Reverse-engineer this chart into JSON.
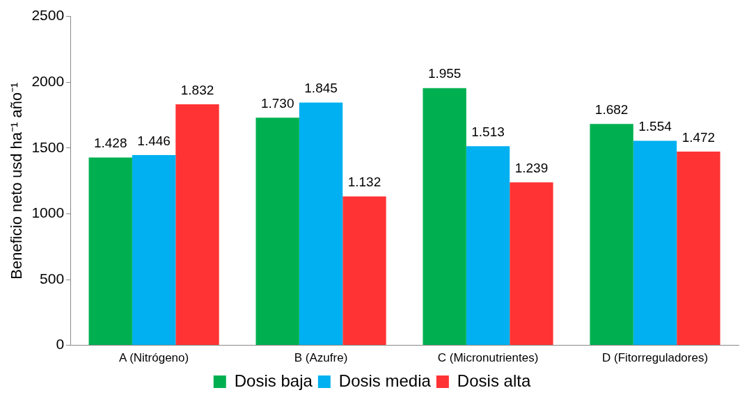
{
  "chart_data": {
    "type": "bar",
    "ylabel": "Beneficio neto usd ha⁻¹ año⁻¹",
    "categories": [
      "A (Nitrógeno)",
      "B (Azufre)",
      "C (Micronutrientes)",
      "D (Fitorreguladores)"
    ],
    "series": [
      {
        "name": "Dosis baja",
        "color": "#00b050",
        "values": [
          1428,
          1730,
          1955,
          1682
        ],
        "value_labels": [
          "1.428",
          "1.730",
          "1.955",
          "1.682"
        ]
      },
      {
        "name": "Dosis media",
        "color": "#00b0f0",
        "values": [
          1446,
          1845,
          1513,
          1554
        ],
        "value_labels": [
          "1.446",
          "1.845",
          "1.513",
          "1.554"
        ]
      },
      {
        "name": "Dosis alta",
        "color": "#ff3333",
        "values": [
          1832,
          1132,
          1239,
          1472
        ],
        "value_labels": [
          "1.832",
          "1.132",
          "1.239",
          "1.472"
        ]
      }
    ],
    "ylim": [
      0,
      2500
    ],
    "yticks": [
      0,
      500,
      1000,
      1500,
      2000,
      2500
    ],
    "grid": false,
    "legend": "bottom"
  }
}
